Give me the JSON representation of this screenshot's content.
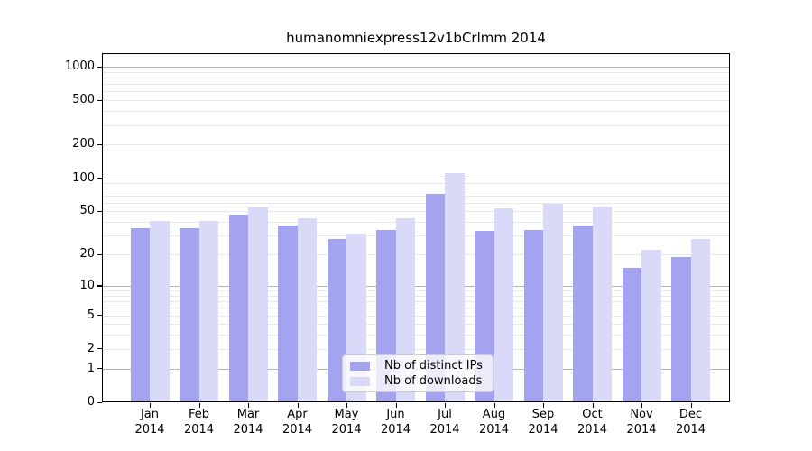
{
  "title": "humanomniexpress12v1bCrlmm 2014",
  "chart_data": {
    "type": "bar",
    "title": "humanomniexpress12v1bCrlmm 2014",
    "categories": [
      "Jan",
      "Feb",
      "Mar",
      "Apr",
      "May",
      "Jun",
      "Jul",
      "Aug",
      "Sep",
      "Oct",
      "Nov",
      "Dec"
    ],
    "category_sublabel": "2014",
    "series": [
      {
        "name": "Nb of distinct IPs",
        "color": "#a3a3ef",
        "values": [
          35,
          35,
          47,
          37,
          28,
          34,
          72,
          33,
          34,
          37,
          15,
          19
        ]
      },
      {
        "name": "Nb of downloads",
        "color": "#d9d9f8",
        "values": [
          41,
          41,
          54,
          43,
          31,
          43,
          111,
          53,
          59,
          55,
          22,
          28
        ]
      }
    ],
    "y_scale": "log1p",
    "y_ticks": [
      0,
      1,
      2,
      5,
      10,
      20,
      50,
      100,
      200,
      500,
      1000
    ],
    "ylim": [
      0,
      1321
    ],
    "xlabel": "",
    "ylabel": "",
    "grid": "on",
    "legend_position": "bottom-center"
  },
  "colors": {
    "bar_distinct_ips": "#a3a3ef",
    "bar_downloads": "#d9d9f8",
    "grid_major": "#b4b4b4",
    "grid_minor": "#e8e8e8",
    "axis": "#000000",
    "legend_border": "#cccccc",
    "background": "#ffffff"
  }
}
